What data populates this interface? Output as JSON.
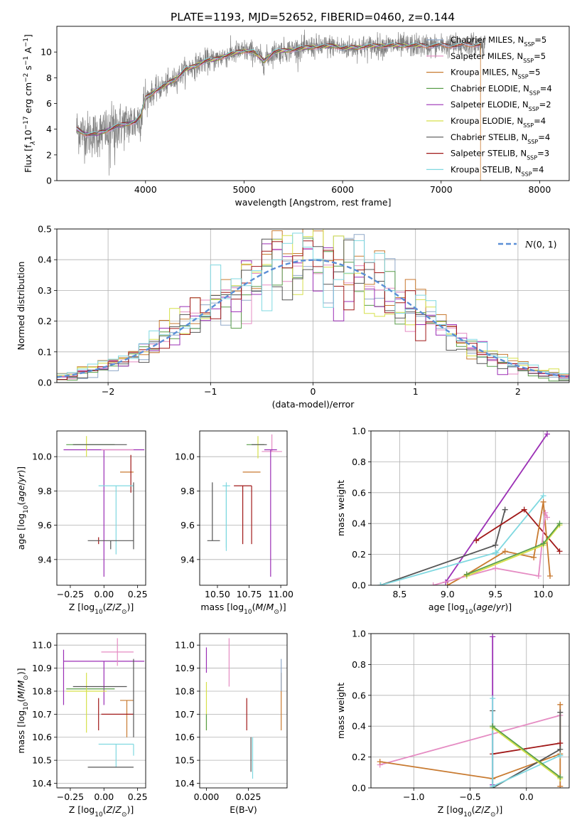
{
  "suptitle": "PLATE=1193, MJD=52652, FIBERID=0460, z=0.144",
  "colors": {
    "Chabrier MILES": "#8fa8c8",
    "Salpeter MILES": "#e58cc3",
    "Kroupa MILES": "#c87a30",
    "Chabrier ELODIE": "#5a9e4a",
    "Salpeter ELODIE": "#9b2fb5",
    "Kroupa ELODIE": "#d6e04a",
    "Chabrier STELIB": "#555555",
    "Salpeter STELIB": "#a01818",
    "Kroupa STELIB": "#7fd8e0",
    "gaussian": "#5b8fd6"
  },
  "chart_data": [
    {
      "id": "spectrum",
      "type": "line",
      "xlabel": "wavelength [Angstrom, rest frame]",
      "ylabel": "Flux [f_λ 10^-17 erg cm^-2 s^-1 A^-1]",
      "xlim": [
        3100,
        8300
      ],
      "ylim": [
        0,
        12
      ],
      "xticks": [
        4000,
        5000,
        6000,
        7000,
        8000
      ],
      "yticks": [
        0,
        2,
        4,
        6,
        8,
        10
      ],
      "data_series": {
        "name": "data",
        "color": "#808080"
      },
      "continuum": {
        "x": [
          3300,
          3400,
          3500,
          3600,
          3700,
          3800,
          3900,
          3950,
          4000,
          4100,
          4200,
          4300,
          4400,
          4500,
          4600,
          4700,
          4800,
          4900,
          5000,
          5100,
          5200,
          5300,
          5400,
          5500,
          5600,
          5700,
          5800,
          5900,
          6000,
          6200,
          6400,
          6600,
          6800,
          7000,
          7200,
          7400,
          7450
        ],
        "y": [
          4.0,
          3.6,
          3.6,
          3.9,
          4.2,
          4.4,
          4.6,
          5.0,
          6.4,
          7.0,
          7.4,
          7.9,
          8.6,
          8.9,
          9.3,
          9.4,
          9.7,
          9.9,
          10.1,
          10.0,
          9.3,
          10.0,
          10.1,
          10.2,
          10.3,
          10.4,
          10.4,
          10.5,
          10.3,
          10.4,
          10.5,
          10.5,
          10.5,
          10.5,
          10.5,
          10.6,
          10.5
        ]
      },
      "legend": [
        {
          "label": "Chabrier MILES, N_SSP=5",
          "key": "Chabrier MILES"
        },
        {
          "label": "Salpeter MILES, N_SSP=5",
          "key": "Salpeter MILES"
        },
        {
          "label": "Kroupa MILES, N_SSP=5",
          "key": "Kroupa MILES"
        },
        {
          "label": "Chabrier ELODIE, N_SSP=4",
          "key": "Chabrier ELODIE"
        },
        {
          "label": "Salpeter ELODIE, N_SSP=2",
          "key": "Salpeter ELODIE"
        },
        {
          "label": "Kroupa ELODIE, N_SSP=4",
          "key": "Kroupa ELODIE"
        },
        {
          "label": "Chabrier STELIB, N_SSP=4",
          "key": "Chabrier STELIB"
        },
        {
          "label": "Salpeter STELIB, N_SSP=3",
          "key": "Salpeter STELIB"
        },
        {
          "label": "Kroupa STELIB, N_SSP=4",
          "key": "Kroupa STELIB"
        }
      ],
      "legend_loc": "upper right"
    },
    {
      "id": "residuals",
      "type": "area",
      "xlabel": "(data-model)/error",
      "ylabel": "Normed distribution",
      "xlim": [
        -2.5,
        2.5
      ],
      "ylim": [
        0,
        0.5
      ],
      "xticks": [
        -2,
        -1,
        0,
        1,
        2
      ],
      "yticks": [
        0.0,
        0.1,
        0.2,
        0.3,
        0.4,
        0.5
      ],
      "bin_width": 0.1,
      "gaussian": {
        "label": "N(0,1)",
        "mean": 0,
        "sigma": 1
      },
      "legend_loc": "upper right",
      "grid": true
    },
    {
      "id": "age_vs_Z",
      "type": "scatter",
      "xlabel": "Z [log10(Z/Z☉)]",
      "ylabel": "age [log10(age/yr)]",
      "xlim": [
        -0.35,
        0.31
      ],
      "ylim": [
        9.25,
        10.15
      ],
      "xticks": [
        -0.25,
        0.0,
        0.25
      ],
      "yticks": [
        9.4,
        9.6,
        9.8,
        10.0
      ],
      "points": [
        {
          "key": "Salpeter ELODIE",
          "x": 0.0,
          "y": 10.04,
          "xerr": 0.3,
          "yerr": [
            0.74,
            0.0
          ]
        },
        {
          "key": "Chabrier ELODIE",
          "x": -0.1,
          "y": 10.07,
          "xerr": 0.18,
          "yerr": [
            0.0,
            0.0
          ]
        },
        {
          "key": "Kroupa ELODIE",
          "x": -0.13,
          "y": 10.08,
          "xerr": 0.0,
          "yerr": [
            0.08,
            0.04
          ]
        },
        {
          "key": "Chabrier STELIB",
          "x": -0.03,
          "y": 10.07,
          "xerr": 0.2,
          "yerr": [
            0.0,
            0.0
          ]
        },
        {
          "key": "Salpeter MILES",
          "x": 0.1,
          "y": 10.04,
          "xerr": 0.12,
          "yerr": [
            0.0,
            0.0
          ]
        },
        {
          "key": "Kroupa MILES",
          "x": 0.17,
          "y": 9.91,
          "xerr": 0.05,
          "yerr": [
            0.0,
            0.0
          ]
        },
        {
          "key": "Salpeter STELIB",
          "x": 0.2,
          "y": 9.91,
          "xerr": 0.0,
          "yerr": [
            0.12,
            0.1
          ]
        },
        {
          "key": "Kroupa STELIB",
          "x": 0.09,
          "y": 9.83,
          "xerr": 0.13,
          "yerr": [
            0.4,
            0.0
          ]
        },
        {
          "key": "Salpeter STELIB",
          "x": -0.04,
          "y": 9.51,
          "xerr": 0.0,
          "yerr": [
            0.02,
            0.02
          ]
        },
        {
          "key": "Chabrier STELIB",
          "x": 0.05,
          "y": 9.51,
          "xerr": 0.17,
          "yerr": [
            0.05,
            0.0
          ]
        },
        {
          "key": "Chabrier STELIB",
          "x": 0.22,
          "y": 9.51,
          "xerr": 0.0,
          "yerr": [
            0.05,
            0.34
          ]
        },
        {
          "key": "Kroupa STELIB",
          "x": 0.22,
          "y": 9.83,
          "xerr": 0.0,
          "yerr": [
            0.0,
            0.0
          ]
        }
      ]
    },
    {
      "id": "age_vs_mass",
      "type": "scatter",
      "xlabel": "mass [log10(M/M☉)]",
      "ylabel": "",
      "xlim": [
        10.36,
        11.05
      ],
      "ylim": [
        9.25,
        10.15
      ],
      "xticks": [
        10.5,
        10.75,
        11.0
      ],
      "yticks": [
        9.4,
        9.6,
        9.8,
        10.0
      ],
      "points": [
        {
          "key": "Chabrier ELODIE",
          "x": 10.8,
          "y": 10.07,
          "xerr": 0.07,
          "yerr": [
            0.0,
            0.0
          ]
        },
        {
          "key": "Kroupa ELODIE",
          "x": 10.82,
          "y": 10.07,
          "xerr": 0.0,
          "yerr": [
            0.08,
            0.05
          ]
        },
        {
          "key": "Chabrier STELIB",
          "x": 10.83,
          "y": 10.07,
          "xerr": 0.06,
          "yerr": [
            0.0,
            0.0
          ]
        },
        {
          "key": "Salpeter MILES",
          "x": 10.93,
          "y": 10.03,
          "xerr": 0.08,
          "yerr": [
            0.0,
            0.1
          ]
        },
        {
          "key": "Salpeter ELODIE",
          "x": 10.92,
          "y": 10.04,
          "xerr": 0.05,
          "yerr": [
            0.74,
            0.0
          ]
        },
        {
          "key": "Kroupa MILES",
          "x": 10.77,
          "y": 9.91,
          "xerr": 0.07,
          "yerr": [
            0.0,
            0.0
          ]
        },
        {
          "key": "Salpeter STELIB",
          "x": 10.7,
          "y": 9.83,
          "xerr": 0.07,
          "yerr": [
            0.34,
            0.0
          ]
        },
        {
          "key": "Kroupa STELIB",
          "x": 10.57,
          "y": 9.83,
          "xerr": 0.03,
          "yerr": [
            0.36,
            0.0
          ]
        },
        {
          "key": "Chabrier STELIB",
          "x": 10.47,
          "y": 9.51,
          "xerr": 0.05,
          "yerr": [
            0.0,
            0.0
          ]
        },
        {
          "key": "Chabrier STELIB",
          "x": 10.46,
          "y": 9.51,
          "xerr": 0.0,
          "yerr": [
            0.0,
            0.34
          ]
        },
        {
          "key": "Kroupa STELIB",
          "x": 10.57,
          "y": 9.5,
          "xerr": 0.0,
          "yerr": [
            0.05,
            0.35
          ]
        },
        {
          "key": "Salpeter STELIB",
          "x": 10.77,
          "y": 9.83,
          "xerr": 0.0,
          "yerr": [
            0.34,
            0.0
          ]
        }
      ]
    },
    {
      "id": "weight_vs_age",
      "type": "line",
      "xlabel": "age  [log10(age/yr)]",
      "ylabel": "mass weight",
      "xlim": [
        8.2,
        10.27
      ],
      "ylim": [
        0,
        1
      ],
      "xticks": [
        8.5,
        9.0,
        9.5,
        10.0
      ],
      "yticks": [
        0.0,
        0.2,
        0.4,
        0.6,
        0.8,
        1.0
      ],
      "series": [
        {
          "key": "Salpeter ELODIE",
          "x": [
            8.98,
            10.04
          ],
          "y": [
            0.02,
            0.98
          ]
        },
        {
          "key": "Chabrier STELIB",
          "x": [
            8.3,
            9.5,
            9.6
          ],
          "y": [
            0.0,
            0.26,
            0.49
          ]
        },
        {
          "key": "Kroupa STELIB",
          "x": [
            8.3,
            9.5,
            9.51,
            10.0
          ],
          "y": [
            0.0,
            0.21,
            0.21,
            0.58
          ]
        },
        {
          "key": "Salpeter STELIB",
          "x": [
            9.3,
            9.8,
            10.17
          ],
          "y": [
            0.29,
            0.49,
            0.22
          ]
        },
        {
          "key": "Kroupa MILES",
          "x": [
            9.0,
            9.2,
            9.6,
            9.9,
            10.0,
            10.07
          ],
          "y": [
            0.0,
            0.07,
            0.22,
            0.18,
            0.54,
            0.06
          ]
        },
        {
          "key": "Salpeter MILES",
          "x": [
            8.85,
            9.5,
            9.95,
            10.02,
            10.04
          ],
          "y": [
            0.0,
            0.11,
            0.06,
            0.47,
            0.44
          ]
        },
        {
          "key": "Kroupa ELODIE",
          "x": [
            9.2,
            10.0,
            10.17
          ],
          "y": [
            0.06,
            0.26,
            0.39
          ]
        },
        {
          "key": "Chabrier ELODIE",
          "x": [
            9.2,
            10.0,
            10.17
          ],
          "y": [
            0.07,
            0.27,
            0.4
          ]
        }
      ],
      "grid": true
    },
    {
      "id": "mass_vs_Z",
      "type": "scatter",
      "xlabel": "Z [log10(Z/Z☉)]",
      "ylabel": "mass [log10(M/M☉)]",
      "xlim": [
        -0.35,
        0.31
      ],
      "ylim": [
        10.38,
        11.05
      ],
      "xticks": [
        -0.25,
        0.0,
        0.25
      ],
      "yticks": [
        10.4,
        10.5,
        10.6,
        10.7,
        10.8,
        10.9,
        11.0
      ],
      "points": [
        {
          "key": "Salpeter ELODIE",
          "x": 0.0,
          "y": 10.93,
          "xerr": 0.3,
          "yerr": [
            0.19,
            0.0
          ]
        },
        {
          "key": "Salpeter ELODIE",
          "x": -0.3,
          "y": 10.93,
          "xerr": 0.0,
          "yerr": [
            0.19,
            0.05
          ]
        },
        {
          "key": "Salpeter MILES",
          "x": 0.1,
          "y": 10.97,
          "xerr": 0.12,
          "yerr": [
            0.06,
            0.06
          ]
        },
        {
          "key": "Chabrier ELODIE",
          "x": -0.1,
          "y": 10.81,
          "xerr": 0.18,
          "yerr": [
            0.0,
            0.0
          ]
        },
        {
          "key": "Kroupa ELODIE",
          "x": -0.13,
          "y": 10.8,
          "xerr": 0.15,
          "yerr": [
            0.18,
            0.08
          ]
        },
        {
          "key": "Chabrier STELIB",
          "x": -0.03,
          "y": 10.82,
          "xerr": 0.2,
          "yerr": [
            0.0,
            0.0
          ]
        },
        {
          "key": "Kroupa MILES",
          "x": 0.17,
          "y": 10.76,
          "xerr": 0.05,
          "yerr": [
            0.16,
            0.0
          ]
        },
        {
          "key": "Salpeter STELIB",
          "x": 0.1,
          "y": 10.7,
          "xerr": 0.12,
          "yerr": [
            0.0,
            0.0
          ]
        },
        {
          "key": "Salpeter STELIB",
          "x": -0.04,
          "y": 10.7,
          "xerr": 0.0,
          "yerr": [
            0.07,
            0.07
          ]
        },
        {
          "key": "Chabrier STELIB",
          "x": 0.22,
          "y": 10.77,
          "xerr": 0.0,
          "yerr": [
            0.17,
            0.17
          ]
        },
        {
          "key": "Kroupa STELIB",
          "x": 0.09,
          "y": 10.57,
          "xerr": 0.13,
          "yerr": [
            0.1,
            0.0
          ]
        },
        {
          "key": "Chabrier STELIB",
          "x": 0.05,
          "y": 10.47,
          "xerr": 0.17,
          "yerr": [
            0.0,
            0.0
          ]
        },
        {
          "key": "Kroupa STELIB",
          "x": 0.22,
          "y": 10.57,
          "xerr": 0.0,
          "yerr": [
            0.05,
            0.0
          ]
        }
      ]
    },
    {
      "id": "mass_vs_ebv",
      "type": "scatter",
      "xlabel": "E(B-V)",
      "ylabel": "",
      "xlim": [
        -0.004,
        0.048
      ],
      "ylim": [
        10.38,
        11.05
      ],
      "xticks": [
        0.0,
        0.025
      ],
      "yticks": [
        10.4,
        10.5,
        10.6,
        10.7,
        10.8,
        10.9,
        11.0
      ],
      "points": [
        {
          "key": "Salpeter ELODIE",
          "x": 0.0,
          "y": 10.93,
          "xerr": 0.0,
          "yerr": [
            0.05,
            0.06
          ]
        },
        {
          "key": "Kroupa ELODIE",
          "x": 0.0,
          "y": 10.73,
          "xerr": 0.0,
          "yerr": [
            0.1,
            0.11
          ]
        },
        {
          "key": "Chabrier ELODIE",
          "x": 0.0,
          "y": 10.7,
          "xerr": 0.0,
          "yerr": [
            0.07,
            0.0
          ]
        },
        {
          "key": "Salpeter MILES",
          "x": 0.0135,
          "y": 10.97,
          "xerr": 0.0,
          "yerr": [
            0.15,
            0.06
          ]
        },
        {
          "key": "Salpeter STELIB",
          "x": 0.024,
          "y": 10.7,
          "xerr": 0.0,
          "yerr": [
            0.07,
            0.07
          ]
        },
        {
          "key": "Kroupa STELIB",
          "x": 0.0275,
          "y": 10.47,
          "xerr": 0.0,
          "yerr": [
            0.05,
            0.13
          ]
        },
        {
          "key": "Chabrier STELIB",
          "x": 0.0265,
          "y": 10.5,
          "xerr": 0.0,
          "yerr": [
            0.05,
            0.1
          ]
        },
        {
          "key": "Kroupa MILES",
          "x": 0.0445,
          "y": 10.76,
          "xerr": 0.0,
          "yerr": [
            0.13,
            0.12
          ]
        },
        {
          "key": "Chabrier MILES",
          "x": 0.0445,
          "y": 10.8,
          "xerr": 0.0,
          "yerr": [
            0.0,
            0.14
          ]
        }
      ]
    },
    {
      "id": "weight_vs_Z",
      "type": "line",
      "xlabel": "Z [log10(Z/Z☉)]",
      "ylabel": "mass weight",
      "xlim": [
        -1.38,
        0.38
      ],
      "ylim": [
        0,
        1
      ],
      "xticks": [
        -1.0,
        -0.5,
        0.0
      ],
      "yticks": [
        0.0,
        0.2,
        0.4,
        0.6,
        0.8,
        1.0
      ],
      "series": [
        {
          "key": "Salpeter ELODIE",
          "x": [
            -0.3,
            -0.3
          ],
          "y": [
            0.02,
            0.98
          ]
        },
        {
          "key": "Salpeter MILES",
          "x": [
            -1.3,
            0.3
          ],
          "y": [
            0.15,
            0.47
          ]
        },
        {
          "key": "Kroupa MILES",
          "x": [
            -1.3,
            -0.3,
            0.3,
            0.3,
            0.3
          ],
          "y": [
            0.17,
            0.06,
            0.22,
            0.54,
            0.01
          ]
        },
        {
          "key": "Chabrier STELIB",
          "x": [
            -0.3,
            -0.3,
            0.3,
            0.3
          ],
          "y": [
            0.5,
            0.0,
            0.25,
            0.49
          ]
        },
        {
          "key": "Salpeter STELIB",
          "x": [
            -0.3,
            0.3
          ],
          "y": [
            0.22,
            0.29
          ]
        },
        {
          "key": "Kroupa STELIB",
          "x": [
            -0.3,
            -0.3,
            0.3,
            0.3
          ],
          "y": [
            0.58,
            0.01,
            0.21,
            0.21
          ]
        },
        {
          "key": "Kroupa ELODIE",
          "x": [
            -0.3,
            0.3
          ],
          "y": [
            0.39,
            0.06
          ]
        },
        {
          "key": "Chabrier ELODIE",
          "x": [
            -0.3,
            0.3
          ],
          "y": [
            0.4,
            0.07
          ]
        }
      ],
      "grid": true
    }
  ]
}
